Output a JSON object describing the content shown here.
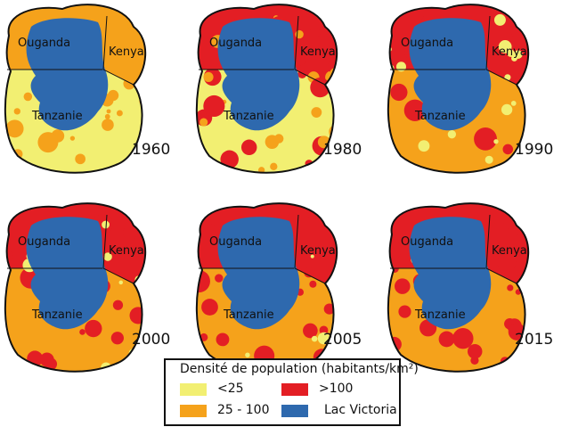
{
  "maps": [
    {
      "year": "1960"
    },
    {
      "year": "1980"
    },
    {
      "year": "1990"
    },
    {
      "year": "2000"
    },
    {
      "year": "2005"
    },
    {
      "year": "2015"
    }
  ],
  "country_labels": {
    "uganda": "Ouganda",
    "kenya": "Kenya",
    "tanzania": "Tanzanie"
  },
  "legend": {
    "title": "Densité de population (habitants/km²)",
    "items": [
      {
        "label": "<25",
        "color": "#f2ef72"
      },
      {
        "label": ">100",
        "color": "#e31e24"
      },
      {
        "label": "25 - 100",
        "color": "#f5a21b"
      },
      {
        "label": "Lac Victoria",
        "color": "#2e69ae"
      }
    ]
  }
}
